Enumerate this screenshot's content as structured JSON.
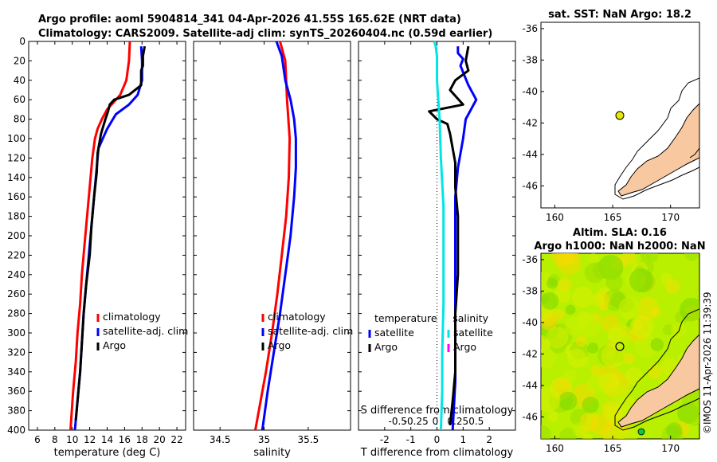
{
  "titles": {
    "line1": "Argo profile: aoml 5904814_341 04-Apr-2026 41.55S 165.62E (NRT data)",
    "line2": "Climatology: CARS2009. Satellite-adj clim: synTS_20260404.nc (0.59d earlier)",
    "sst": "sat. SST: NaN Argo: 18.2",
    "sla": "Altim. SLA: 0.16",
    "heights": "Argo h1000: NaN h2000: NaN"
  },
  "timestamp": "©IMOS 11-Apr-2026 11:39:39",
  "colors": {
    "climatology": "#ff0000",
    "satellite": "#0000ff",
    "argo": "#000000",
    "sal_satellite": "#00e5e5",
    "sal_magenta": "#ff00ff",
    "land": "#f8c8a0"
  },
  "chart_data": [
    {
      "type": "line",
      "name": "temperature-profile",
      "xlabel": "temperature (deg C)",
      "ylabel": "",
      "xlim": [
        5,
        23
      ],
      "ylim": [
        400,
        0
      ],
      "xticks": [
        6,
        8,
        10,
        12,
        14,
        16,
        18,
        20,
        22
      ],
      "yticks": [
        0,
        20,
        40,
        60,
        80,
        100,
        120,
        140,
        160,
        180,
        200,
        220,
        240,
        260,
        280,
        300,
        320,
        340,
        360,
        380,
        400
      ],
      "legend": [
        "climatology",
        "satellite-adj. clim",
        "Argo"
      ],
      "legend_position": "bottom-right",
      "series": [
        {
          "name": "climatology",
          "color": "red",
          "points": [
            [
              16.6,
              0
            ],
            [
              16.5,
              20
            ],
            [
              16.2,
              40
            ],
            [
              15.5,
              55
            ],
            [
              14.8,
              62
            ],
            [
              14.0,
              70
            ],
            [
              13.4,
              80
            ],
            [
              12.9,
              90
            ],
            [
              12.6,
              100
            ],
            [
              12.3,
              120
            ],
            [
              12.0,
              150
            ],
            [
              11.7,
              180
            ],
            [
              11.4,
              210
            ],
            [
              11.1,
              240
            ],
            [
              10.9,
              270
            ],
            [
              10.6,
              300
            ],
            [
              10.4,
              330
            ],
            [
              10.1,
              360
            ],
            [
              9.8,
              400
            ]
          ]
        },
        {
          "name": "satellite-adj. clim",
          "color": "blue",
          "points": [
            [
              17.9,
              5
            ],
            [
              18.0,
              20
            ],
            [
              18.0,
              40
            ],
            [
              17.5,
              55
            ],
            [
              16.5,
              65
            ],
            [
              15.0,
              75
            ],
            [
              14.0,
              90
            ],
            [
              13.5,
              100
            ],
            [
              13.0,
              110
            ],
            [
              12.8,
              130
            ],
            [
              12.5,
              160
            ],
            [
              12.2,
              190
            ],
            [
              11.9,
              220
            ],
            [
              11.6,
              250
            ],
            [
              11.3,
              280
            ],
            [
              11.1,
              310
            ],
            [
              10.9,
              340
            ],
            [
              10.6,
              370
            ],
            [
              10.3,
              400
            ]
          ]
        },
        {
          "name": "Argo",
          "color": "black",
          "points": [
            [
              18.3,
              5
            ],
            [
              18.1,
              15
            ],
            [
              18.1,
              25
            ],
            [
              17.9,
              30
            ],
            [
              17.9,
              45
            ],
            [
              16.5,
              55
            ],
            [
              14.8,
              60
            ],
            [
              14.3,
              65
            ],
            [
              14.1,
              72
            ],
            [
              13.8,
              80
            ],
            [
              13.3,
              95
            ],
            [
              12.9,
              115
            ],
            [
              12.8,
              135
            ],
            [
              12.5,
              160
            ],
            [
              12.2,
              190
            ],
            [
              12.0,
              220
            ],
            [
              11.6,
              250
            ],
            [
              11.3,
              280
            ],
            [
              11.1,
              310
            ],
            [
              10.9,
              340
            ],
            [
              10.6,
              370
            ],
            [
              10.4,
              390
            ]
          ]
        }
      ]
    },
    {
      "type": "line",
      "name": "salinity-profile",
      "xlabel": "salinity",
      "ylabel": "",
      "xlim": [
        34.2,
        35.98
      ],
      "ylim": [
        400,
        0
      ],
      "xticks": [
        34.5,
        35,
        35.5
      ],
      "legend": [
        "climatology",
        "satellite-adj. clim",
        "Argo"
      ],
      "legend_position": "bottom-right",
      "series": [
        {
          "name": "climatology",
          "color": "red",
          "points": [
            [
              35.18,
              0
            ],
            [
              35.24,
              20
            ],
            [
              35.26,
              60
            ],
            [
              35.29,
              100
            ],
            [
              35.28,
              140
            ],
            [
              35.25,
              180
            ],
            [
              35.2,
              220
            ],
            [
              35.15,
              260
            ],
            [
              35.09,
              300
            ],
            [
              35.02,
              340
            ],
            [
              34.94,
              380
            ],
            [
              34.9,
              400
            ]
          ]
        },
        {
          "name": "satellite-adj. clim",
          "color": "blue",
          "points": [
            [
              35.14,
              0
            ],
            [
              35.2,
              15
            ],
            [
              35.24,
              40
            ],
            [
              35.3,
              60
            ],
            [
              35.34,
              80
            ],
            [
              35.36,
              100
            ],
            [
              35.36,
              130
            ],
            [
              35.34,
              160
            ],
            [
              35.3,
              200
            ],
            [
              35.24,
              240
            ],
            [
              35.18,
              280
            ],
            [
              35.11,
              320
            ],
            [
              35.04,
              360
            ],
            [
              34.98,
              400
            ]
          ]
        }
      ]
    },
    {
      "type": "line",
      "name": "difference-profile",
      "xlabel": "T difference from climatology",
      "xlabel2": "S difference from climatology",
      "ylabel": "",
      "xlim": [
        -3,
        3
      ],
      "ylim": [
        400,
        0
      ],
      "xticks": [
        -2,
        -1,
        0,
        1,
        2
      ],
      "xticks_salinity": [
        "-0.5",
        "-0.25",
        "0",
        "0.25",
        "0.5"
      ],
      "legend_temperature": {
        "title": "temperature",
        "entries": [
          "satellite",
          "Argo"
        ]
      },
      "legend_salinity": {
        "title": "salinity",
        "entries": [
          "satellite",
          "Argo"
        ]
      },
      "series": [
        {
          "name": "temperature satellite",
          "color": "blue",
          "points": [
            [
              0.8,
              5
            ],
            [
              0.8,
              12
            ],
            [
              1.0,
              18
            ],
            [
              0.9,
              25
            ],
            [
              1.2,
              45
            ],
            [
              1.5,
              60
            ],
            [
              1.1,
              80
            ],
            [
              1.0,
              100
            ],
            [
              0.8,
              130
            ],
            [
              0.7,
              160
            ],
            [
              0.7,
              200
            ],
            [
              0.7,
              250
            ],
            [
              0.7,
              300
            ],
            [
              0.7,
              350
            ],
            [
              0.6,
              400
            ]
          ]
        },
        {
          "name": "temperature Argo",
          "color": "black",
          "points": [
            [
              1.2,
              5
            ],
            [
              1.1,
              20
            ],
            [
              1.2,
              30
            ],
            [
              0.7,
              40
            ],
            [
              0.5,
              50
            ],
            [
              1.0,
              65
            ],
            [
              -0.3,
              72
            ],
            [
              0.0,
              80
            ],
            [
              0.4,
              85
            ],
            [
              0.5,
              95
            ],
            [
              0.6,
              110
            ],
            [
              0.7,
              125
            ],
            [
              0.7,
              150
            ],
            [
              0.8,
              180
            ],
            [
              0.8,
              210
            ],
            [
              0.8,
              240
            ],
            [
              0.7,
              280
            ],
            [
              0.7,
              310
            ],
            [
              0.7,
              340
            ],
            [
              0.6,
              370
            ],
            [
              0.5,
              395
            ]
          ]
        },
        {
          "name": "salinity satellite",
          "color": "cyan",
          "points": [
            [
              -0.1,
              0
            ],
            [
              -0.05,
              5
            ],
            [
              0.0,
              15
            ],
            [
              0.0,
              40
            ],
            [
              0.1,
              80
            ],
            [
              0.15,
              120
            ],
            [
              0.25,
              170
            ],
            [
              0.25,
              220
            ],
            [
              0.25,
              270
            ],
            [
              0.2,
              320
            ],
            [
              0.2,
              360
            ],
            [
              0.15,
              400
            ]
          ]
        }
      ]
    }
  ],
  "maps": [
    {
      "name": "sst-map",
      "xticks": [
        "160",
        "165",
        "170"
      ],
      "yticks": [
        "-36",
        "-38",
        "-40",
        "-42",
        "-44",
        "-46"
      ],
      "argo_marker": {
        "lon": 165.62,
        "lat": -41.55
      }
    },
    {
      "name": "sla-map",
      "xticks": [
        "160",
        "165",
        "170"
      ],
      "yticks": [
        "-36",
        "-38",
        "-40",
        "-42",
        "-44",
        "-46"
      ],
      "argo_marker": {
        "lon": 165.62,
        "lat": -41.55
      }
    }
  ]
}
